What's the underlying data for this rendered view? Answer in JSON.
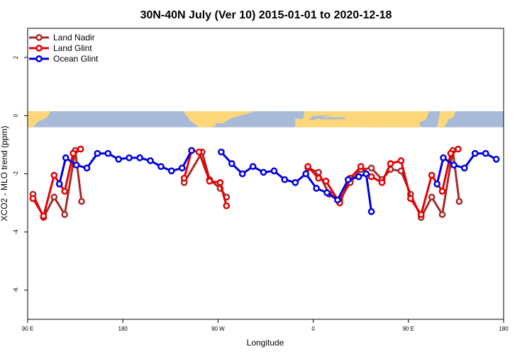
{
  "chart_data": {
    "type": "line",
    "title": "30N-40N July (Ver 10)   2015-01-01 to 2020-12-18",
    "xlabel": "Longitude",
    "ylabel": "XCO2 - MLO trend (ppm)",
    "xlim": [
      90,
      540
    ],
    "ylim": [
      -7,
      3
    ],
    "x_ticks": [
      {
        "value": 90,
        "label": "90 E"
      },
      {
        "value": 180,
        "label": "180"
      },
      {
        "value": 270,
        "label": "90 W"
      },
      {
        "value": 360,
        "label": "0"
      },
      {
        "value": 450,
        "label": "90 E"
      },
      {
        "value": 540,
        "label": "180"
      }
    ],
    "y_ticks": [
      {
        "value": -6,
        "label": "-6"
      },
      {
        "value": -4,
        "label": "-4"
      },
      {
        "value": -2,
        "label": "-2"
      },
      {
        "value": 0,
        "label": "0"
      },
      {
        "value": 2,
        "label": "2"
      }
    ],
    "legend_position": "top-left",
    "map_band": {
      "y_range": [
        -0.4,
        0.15
      ],
      "land_color": "#fcd87a",
      "ocean_color": "#a7bbd9"
    },
    "series": [
      {
        "name": "Land Nadir",
        "color": "#a52a2a",
        "segments": [
          [
            [
              95,
              -2.7
            ],
            [
              105,
              -3.5
            ],
            [
              115,
              -2.8
            ],
            [
              125,
              -3.4
            ],
            [
              135,
              -1.2
            ],
            [
              141,
              -2.95
            ]
          ],
          [
            [
              238,
              -2.3
            ],
            [
              255,
              -1.25
            ],
            [
              262,
              -2.2
            ],
            [
              272,
              -2.5
            ],
            [
              278,
              -2.8
            ]
          ],
          [
            [
              355,
              -1.8
            ],
            [
              365,
              -1.95
            ],
            [
              375,
              -2.7
            ],
            [
              385,
              -2.9
            ],
            [
              395,
              -2.3
            ],
            [
              405,
              -1.85
            ],
            [
              415,
              -1.8
            ],
            [
              425,
              -2.2
            ],
            [
              433,
              -1.85
            ],
            [
              443,
              -1.9
            ],
            [
              452,
              -2.7
            ],
            [
              462,
              -3.5
            ],
            [
              472,
              -2.8
            ],
            [
              482,
              -3.4
            ],
            [
              492,
              -1.2
            ],
            [
              498,
              -2.95
            ]
          ]
        ]
      },
      {
        "name": "Land Glint",
        "color": "#e60000",
        "segments": [
          [
            [
              95,
              -2.85
            ],
            [
              105,
              -3.45
            ],
            [
              115,
              -2.05
            ],
            [
              125,
              -2.6
            ],
            [
              133,
              -1.3
            ],
            [
              140,
              -1.15
            ]
          ],
          [
            [
              238,
              -2.15
            ],
            [
              245,
              -1.2
            ],
            [
              252,
              -1.25
            ],
            [
              262,
              -2.25
            ],
            [
              272,
              -2.3
            ],
            [
              278,
              -3.1
            ]
          ],
          [
            [
              355,
              -1.75
            ],
            [
              365,
              -2.15
            ],
            [
              372,
              -2.25
            ],
            [
              385,
              -3.0
            ],
            [
              395,
              -2.15
            ],
            [
              405,
              -1.75
            ],
            [
              415,
              -2.1
            ],
            [
              425,
              -2.3
            ],
            [
              433,
              -1.65
            ],
            [
              443,
              -1.55
            ],
            [
              452,
              -2.85
            ],
            [
              462,
              -3.4
            ],
            [
              472,
              -2.05
            ],
            [
              482,
              -2.6
            ],
            [
              490,
              -1.3
            ],
            [
              497,
              -1.15
            ]
          ]
        ]
      },
      {
        "name": "Ocean Glint",
        "color": "#0000dd",
        "segments": [
          [
            [
              120,
              -2.35
            ],
            [
              126,
              -1.45
            ],
            [
              136,
              -1.7
            ],
            [
              146,
              -1.8
            ],
            [
              156,
              -1.3
            ],
            [
              166,
              -1.3
            ],
            [
              176,
              -1.5
            ],
            [
              186,
              -1.45
            ],
            [
              196,
              -1.45
            ],
            [
              206,
              -1.55
            ],
            [
              216,
              -1.75
            ],
            [
              226,
              -1.9
            ],
            [
              236,
              -1.8
            ],
            [
              245,
              -1.2
            ]
          ],
          [
            [
              273,
              -1.25
            ],
            [
              283,
              -1.65
            ],
            [
              293,
              -2.0
            ],
            [
              303,
              -1.75
            ],
            [
              313,
              -1.95
            ],
            [
              323,
              -1.9
            ],
            [
              333,
              -2.2
            ],
            [
              343,
              -2.3
            ],
            [
              353,
              -2.0
            ],
            [
              363,
              -2.5
            ],
            [
              373,
              -2.65
            ],
            [
              383,
              -2.9
            ],
            [
              393,
              -2.2
            ],
            [
              403,
              -2.1
            ],
            [
              410,
              -2.0
            ],
            [
              415,
              -3.3
            ]
          ],
          [
            [
              477,
              -2.35
            ],
            [
              483,
              -1.45
            ],
            [
              493,
              -1.7
            ],
            [
              503,
              -1.8
            ],
            [
              513,
              -1.3
            ],
            [
              523,
              -1.3
            ],
            [
              533,
              -1.5
            ]
          ]
        ]
      }
    ]
  }
}
